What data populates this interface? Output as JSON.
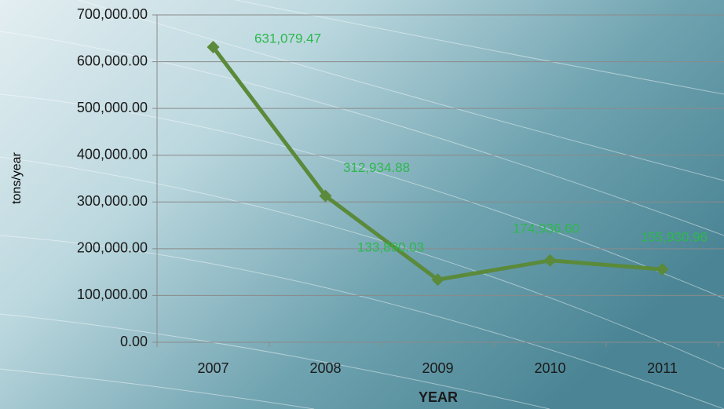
{
  "chart_data": {
    "type": "line",
    "x_label": "YEAR",
    "y_label": "tons/year",
    "categories": [
      "2007",
      "2008",
      "2009",
      "2010",
      "2011"
    ],
    "values": [
      631079.47,
      312934.88,
      133890.03,
      174936.6,
      155930.96
    ],
    "value_labels": [
      "631,079.47",
      "312,934.88",
      "133,890.03",
      "174,936.60",
      "155,930.96"
    ],
    "color": "#5a8a3a",
    "label_color": "#2db84d",
    "ylim": [
      0,
      700000
    ],
    "yticks": [
      {
        "value": 0,
        "label": "0.00"
      },
      {
        "value": 100000,
        "label": "100,000.00"
      },
      {
        "value": 200000,
        "label": "200,000.00"
      },
      {
        "value": 300000,
        "label": "300,000.00"
      },
      {
        "value": 400000,
        "label": "400,000.00"
      },
      {
        "value": 500000,
        "label": "500,000.00"
      },
      {
        "value": 600000,
        "label": "600,000.00"
      },
      {
        "value": 700000,
        "label": "700,000.00"
      }
    ],
    "grid": true
  }
}
